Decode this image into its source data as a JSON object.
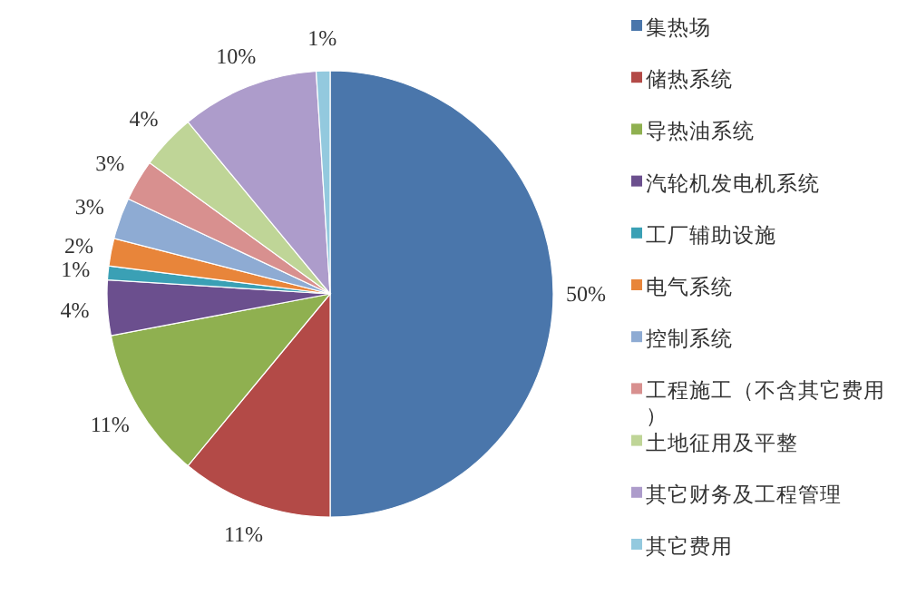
{
  "chart_data": {
    "type": "pie",
    "categories": [
      "集热场",
      "储热系统",
      "导热油系统",
      "汽轮机发电机系统",
      "工厂辅助设施",
      "电气系统",
      "控制系统",
      "工程施工（不含其它费用）",
      "土地征用及平整",
      "其它财务及工程管理",
      "其它费用"
    ],
    "values": [
      50,
      11,
      11,
      4,
      1,
      2,
      3,
      3,
      4,
      10,
      1
    ],
    "colors": [
      "#4a76ab",
      "#b34a47",
      "#8fb050",
      "#6b4f8e",
      "#3aa0b5",
      "#e8853a",
      "#8eabd3",
      "#d8908f",
      "#bfd597",
      "#ad9ccb",
      "#93c9de"
    ],
    "value_labels": [
      "50%",
      "11%",
      "11%",
      "4%",
      "1%",
      "2%",
      "3%",
      "3%",
      "4%",
      "10%",
      "1%"
    ],
    "legend": "right"
  }
}
